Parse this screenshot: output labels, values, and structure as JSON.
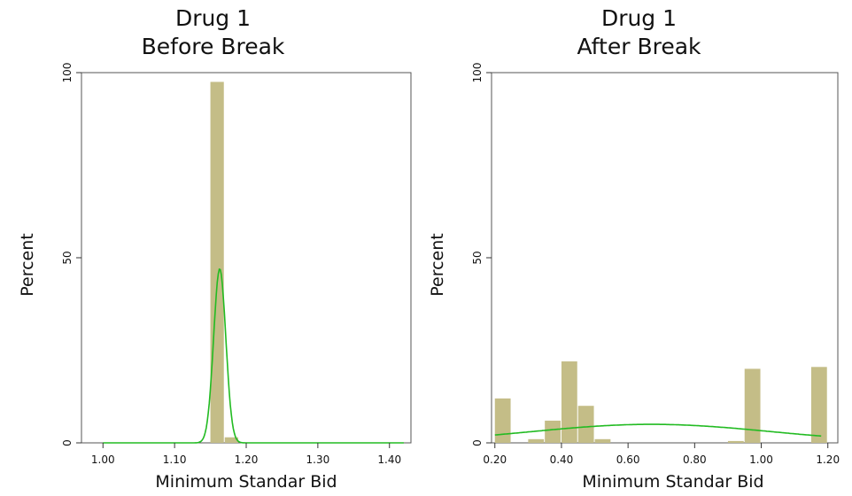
{
  "chart_data": [
    {
      "type": "histogram",
      "title": "Drug 1",
      "subtitle": "Before Break",
      "xlabel": "Minimum Standar Bid",
      "ylabel": "Percent",
      "xlim": [
        0.97,
        1.43
      ],
      "ylim": [
        0,
        100
      ],
      "x_ticks": [
        1.0,
        1.1,
        1.2,
        1.3,
        1.4
      ],
      "x_tick_labels": [
        "1.00",
        "1.10",
        "1.20",
        "1.30",
        "1.40"
      ],
      "y_ticks": [
        0,
        50,
        100
      ],
      "y_tick_labels": [
        "0",
        "50",
        "100"
      ],
      "bin_width": 0.02,
      "bins": [
        {
          "x": 1.16,
          "value": 97.5
        },
        {
          "x": 1.18,
          "value": 1.5
        }
      ],
      "density_curve": {
        "type": "normal",
        "mean": 1.163,
        "sd": 0.0085,
        "peak_percent": 47
      },
      "bar_color": "#c4bd87",
      "curve_color": "#22bb22",
      "grid": false
    },
    {
      "type": "histogram",
      "title": "Drug 1",
      "subtitle": "After Break",
      "xlabel": "Minimum Standar Bid",
      "ylabel": "Percent",
      "xlim": [
        0.19,
        1.23
      ],
      "ylim": [
        0,
        100
      ],
      "x_ticks": [
        0.2,
        0.4,
        0.6,
        0.8,
        1.0,
        1.2
      ],
      "x_tick_labels": [
        "0.20",
        "0.40",
        "0.60",
        "0.80",
        "1.00",
        "1.20"
      ],
      "y_ticks": [
        0,
        50,
        100
      ],
      "y_tick_labels": [
        "0",
        "50",
        "100"
      ],
      "bin_width": 0.05,
      "bins": [
        {
          "x": 0.225,
          "value": 12
        },
        {
          "x": 0.325,
          "value": 1
        },
        {
          "x": 0.375,
          "value": 6
        },
        {
          "x": 0.425,
          "value": 22
        },
        {
          "x": 0.475,
          "value": 10
        },
        {
          "x": 0.525,
          "value": 1
        },
        {
          "x": 0.925,
          "value": 0.5
        },
        {
          "x": 0.975,
          "value": 20
        },
        {
          "x": 1.175,
          "value": 20.5
        }
      ],
      "density_curve": {
        "type": "normal",
        "mean": 0.67,
        "sd": 0.36,
        "peak_percent": 5
      },
      "bar_color": "#c4bd87",
      "curve_color": "#22bb22",
      "grid": false
    }
  ]
}
